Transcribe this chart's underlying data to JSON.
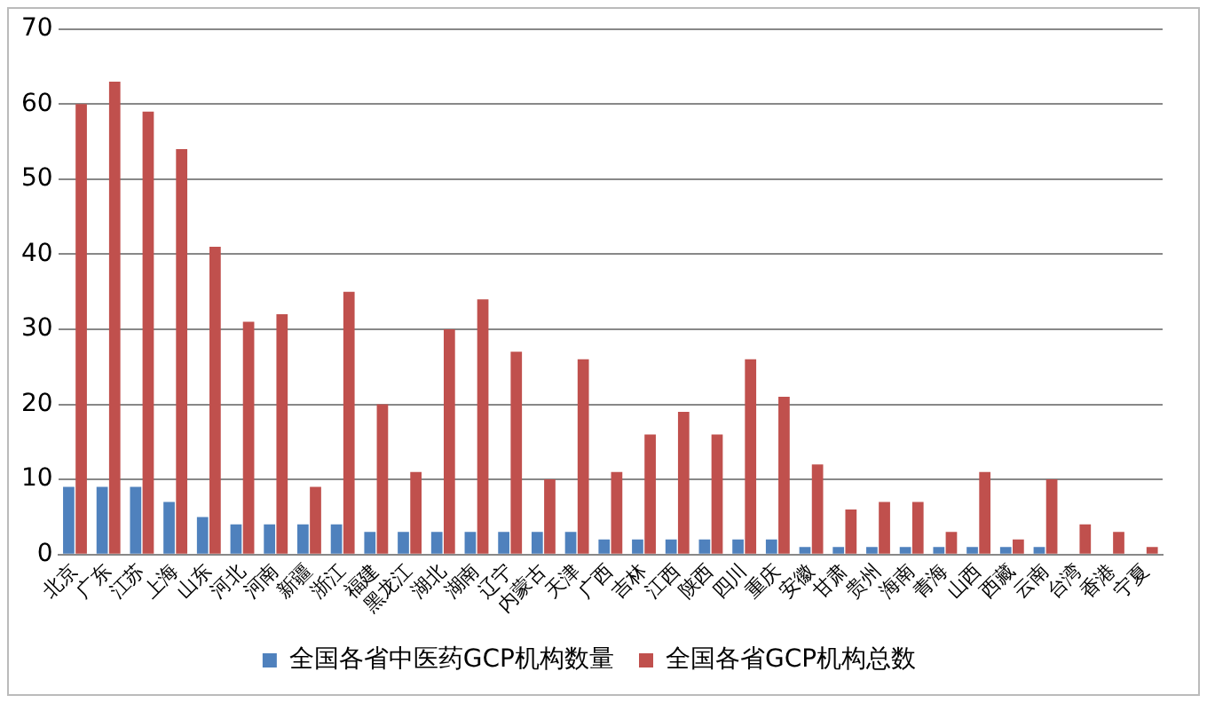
{
  "chart_data": {
    "type": "bar",
    "categories": [
      "北京",
      "广东",
      "江苏",
      "上海",
      "山东",
      "河北",
      "河南",
      "新疆",
      "浙江",
      "福建",
      "黑龙江",
      "湖北",
      "湖南",
      "辽宁",
      "内蒙古",
      "天津",
      "广西",
      "吉林",
      "江西",
      "陕西",
      "四川",
      "重庆",
      "安徽",
      "甘肃",
      "贵州",
      "海南",
      "青海",
      "山西",
      "西藏",
      "云南",
      "台湾",
      "香港",
      "宁夏"
    ],
    "series": [
      {
        "name": "全国各省中医药GCP机构数量",
        "color": "#4f81bd",
        "values": [
          9,
          9,
          9,
          7,
          5,
          4,
          4,
          4,
          4,
          3,
          3,
          3,
          3,
          3,
          3,
          3,
          2,
          2,
          2,
          2,
          2,
          2,
          1,
          1,
          1,
          1,
          1,
          1,
          1,
          1,
          0,
          0,
          0
        ]
      },
      {
        "name": "全国各省GCP机构总数",
        "color": "#c0504d",
        "values": [
          60,
          63,
          59,
          54,
          41,
          31,
          32,
          9,
          35,
          20,
          11,
          30,
          34,
          27,
          10,
          26,
          11,
          16,
          19,
          16,
          26,
          21,
          12,
          6,
          7,
          7,
          3,
          11,
          2,
          10,
          4,
          3,
          1
        ]
      }
    ],
    "ylim": [
      0,
      70
    ],
    "yticks": [
      0,
      10,
      20,
      30,
      40,
      50,
      60,
      70
    ],
    "grid": "y",
    "legend": "bottom"
  }
}
